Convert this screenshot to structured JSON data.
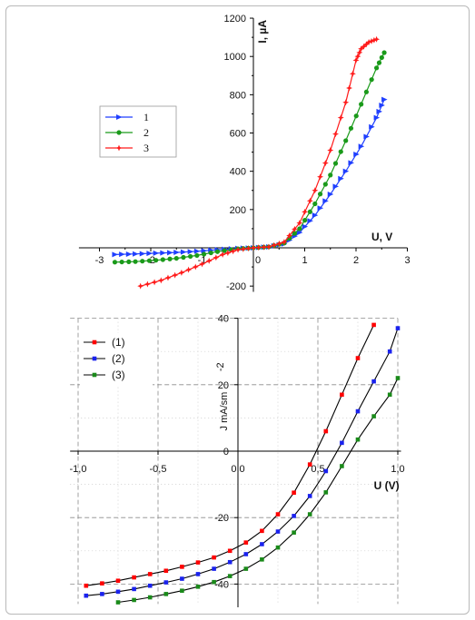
{
  "chart_data": [
    {
      "type": "line",
      "xlabel": "U, V",
      "ylabel": "I, µA",
      "xlim": [
        -3.4,
        3.0
      ],
      "ylim": [
        -200,
        1200
      ],
      "xticks": [
        "-3",
        "-2",
        "-1",
        "0",
        "1",
        "2",
        "3"
      ],
      "yticks": [
        "-200",
        "200",
        "400",
        "600",
        "800",
        "1000",
        "1200"
      ],
      "legend_position": "left-middle",
      "series": [
        {
          "name": "1",
          "color": "#1f3fff",
          "x": [
            -2.7,
            -2.3,
            -1.9,
            -1.5,
            -1.1,
            -0.7,
            -0.3,
            0.0,
            0.3,
            0.6,
            0.9,
            1.2,
            1.5,
            1.8,
            2.1,
            2.4,
            2.55
          ],
          "y": [
            -35,
            -32,
            -28,
            -24,
            -18,
            -10,
            -3,
            0,
            5,
            20,
            80,
            170,
            280,
            400,
            530,
            680,
            775
          ]
        },
        {
          "name": "2",
          "color": "#1a9a1a",
          "x": [
            -2.7,
            -2.3,
            -1.9,
            -1.5,
            -1.1,
            -0.7,
            -0.3,
            0.0,
            0.3,
            0.6,
            0.9,
            1.2,
            1.5,
            1.8,
            2.1,
            2.4,
            2.55
          ],
          "y": [
            -75,
            -72,
            -65,
            -55,
            -40,
            -20,
            -5,
            0,
            5,
            25,
            100,
            230,
            380,
            560,
            750,
            940,
            1020
          ]
        },
        {
          "name": "3",
          "color": "#ff1a1a",
          "x": [
            -2.2,
            -1.8,
            -1.4,
            -1.0,
            -0.6,
            -0.3,
            0.0,
            0.3,
            0.6,
            0.9,
            1.2,
            1.5,
            1.8,
            2.0,
            2.1,
            2.25,
            2.4
          ],
          "y": [
            -200,
            -170,
            -130,
            -85,
            -35,
            -10,
            0,
            5,
            30,
            130,
            300,
            510,
            760,
            980,
            1040,
            1075,
            1090
          ]
        }
      ]
    },
    {
      "type": "line",
      "xlabel": "U (V)",
      "ylabel": "J  mA/sm",
      "ylabel_exp": "-2",
      "xlim": [
        -1.0,
        1.0
      ],
      "ylim": [
        -45,
        40
      ],
      "xticks": [
        "-1,0",
        "-0,5",
        "0,0",
        "0,5",
        "1,0"
      ],
      "yticks": [
        "-40",
        "-20",
        "0",
        "20",
        "40"
      ],
      "legend_position": "top-left",
      "series": [
        {
          "name": "(1)",
          "color": "#ff0000",
          "x": [
            -0.95,
            -0.85,
            -0.75,
            -0.65,
            -0.55,
            -0.45,
            -0.35,
            -0.25,
            -0.15,
            -0.05,
            0.05,
            0.15,
            0.25,
            0.35,
            0.45,
            0.55,
            0.65,
            0.75,
            0.85
          ],
          "y": [
            -40.5,
            -39.8,
            -39,
            -38,
            -37,
            -36,
            -34.8,
            -33.5,
            -32,
            -30,
            -27.5,
            -24,
            -19,
            -12.5,
            -4,
            6,
            17,
            28,
            38
          ]
        },
        {
          "name": "(2)",
          "color": "#1a22ee",
          "x": [
            -0.95,
            -0.85,
            -0.75,
            -0.65,
            -0.55,
            -0.45,
            -0.35,
            -0.25,
            -0.15,
            -0.05,
            0.05,
            0.15,
            0.25,
            0.35,
            0.45,
            0.55,
            0.65,
            0.75,
            0.85,
            0.95,
            1.0
          ],
          "y": [
            -43.5,
            -43,
            -42.3,
            -41.5,
            -40.5,
            -39.5,
            -38.4,
            -37,
            -35.4,
            -33.4,
            -31,
            -28,
            -24.2,
            -19.5,
            -13.5,
            -6,
            2.5,
            12,
            21,
            30,
            37
          ]
        },
        {
          "name": "(3)",
          "color": "#1a8a1a",
          "x": [
            -0.75,
            -0.65,
            -0.55,
            -0.45,
            -0.35,
            -0.25,
            -0.15,
            -0.05,
            0.05,
            0.15,
            0.25,
            0.35,
            0.45,
            0.55,
            0.65,
            0.75,
            0.85,
            0.95,
            1.0
          ],
          "y": [
            -45.5,
            -44.8,
            -44,
            -43,
            -42,
            -40.8,
            -39.4,
            -37.6,
            -35.4,
            -32.6,
            -29,
            -24.5,
            -19,
            -12.4,
            -4.5,
            3.5,
            10.5,
            17,
            22
          ]
        }
      ]
    }
  ]
}
